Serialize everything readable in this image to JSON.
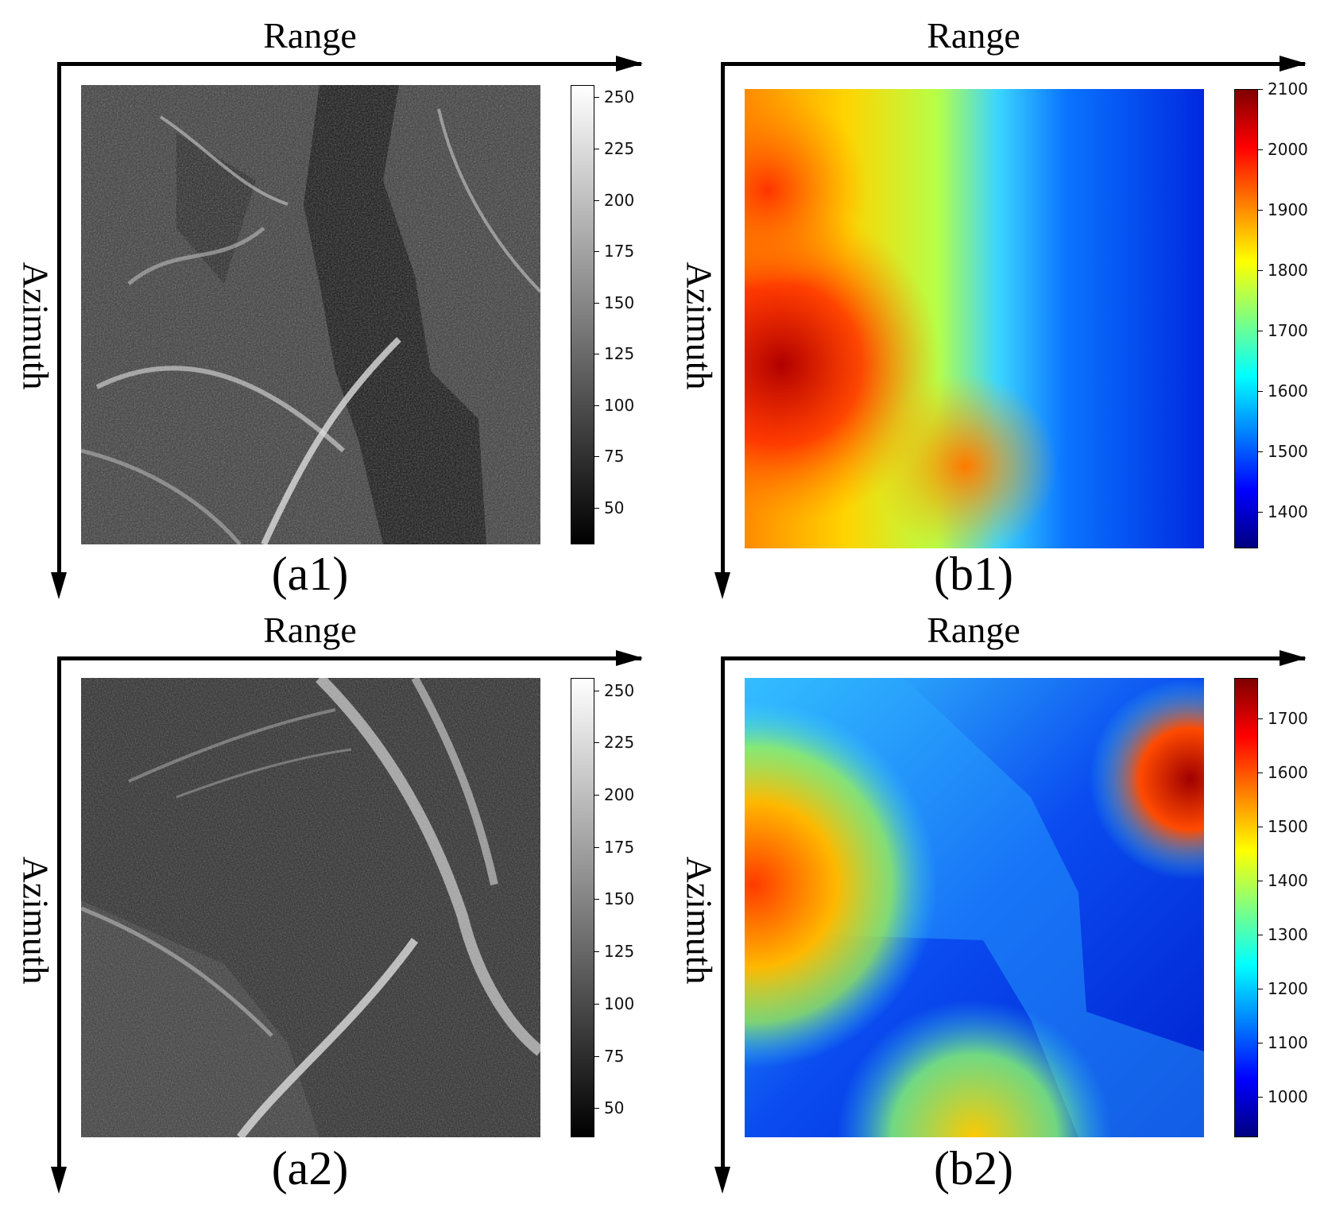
{
  "panels": [
    {
      "id": "a1",
      "range_label": "Range",
      "azimuth_label": "Azimuth",
      "caption": "(a1)",
      "image": "grayscale SAR amplitude image",
      "colorbar": {
        "colormap": "gray",
        "ticks": [
          "250",
          "225",
          "200",
          "175",
          "150",
          "125",
          "100",
          "75",
          "50"
        ],
        "tick_values": [
          250,
          225,
          200,
          175,
          150,
          125,
          100,
          75,
          50
        ],
        "min": 32,
        "max": 256
      }
    },
    {
      "id": "b1",
      "range_label": "Range",
      "azimuth_label": "Azimuth",
      "caption": "(b1)",
      "image": "DEM elevation map",
      "colorbar": {
        "colormap": "jet",
        "ticks": [
          "2100",
          "2000",
          "1900",
          "1800",
          "1700",
          "1600",
          "1500",
          "1400"
        ],
        "tick_values": [
          2100,
          2000,
          1900,
          1800,
          1700,
          1600,
          1500,
          1400
        ],
        "min": 1340,
        "max": 2100
      }
    },
    {
      "id": "a2",
      "range_label": "Range",
      "azimuth_label": "Azimuth",
      "caption": "(a2)",
      "image": "grayscale SAR amplitude image",
      "colorbar": {
        "colormap": "gray",
        "ticks": [
          "250",
          "225",
          "200",
          "175",
          "150",
          "125",
          "100",
          "75",
          "50"
        ],
        "tick_values": [
          250,
          225,
          200,
          175,
          150,
          125,
          100,
          75,
          50
        ],
        "min": 36,
        "max": 256
      }
    },
    {
      "id": "b2",
      "range_label": "Range",
      "azimuth_label": "Azimuth",
      "caption": "(b2)",
      "image": "DEM elevation map",
      "colorbar": {
        "colormap": "jet",
        "ticks": [
          "1700",
          "1600",
          "1500",
          "1400",
          "1300",
          "1200",
          "1100",
          "1000"
        ],
        "tick_values": [
          1700,
          1600,
          1500,
          1400,
          1300,
          1200,
          1100,
          1000
        ],
        "min": 925,
        "max": 1775
      }
    }
  ]
}
